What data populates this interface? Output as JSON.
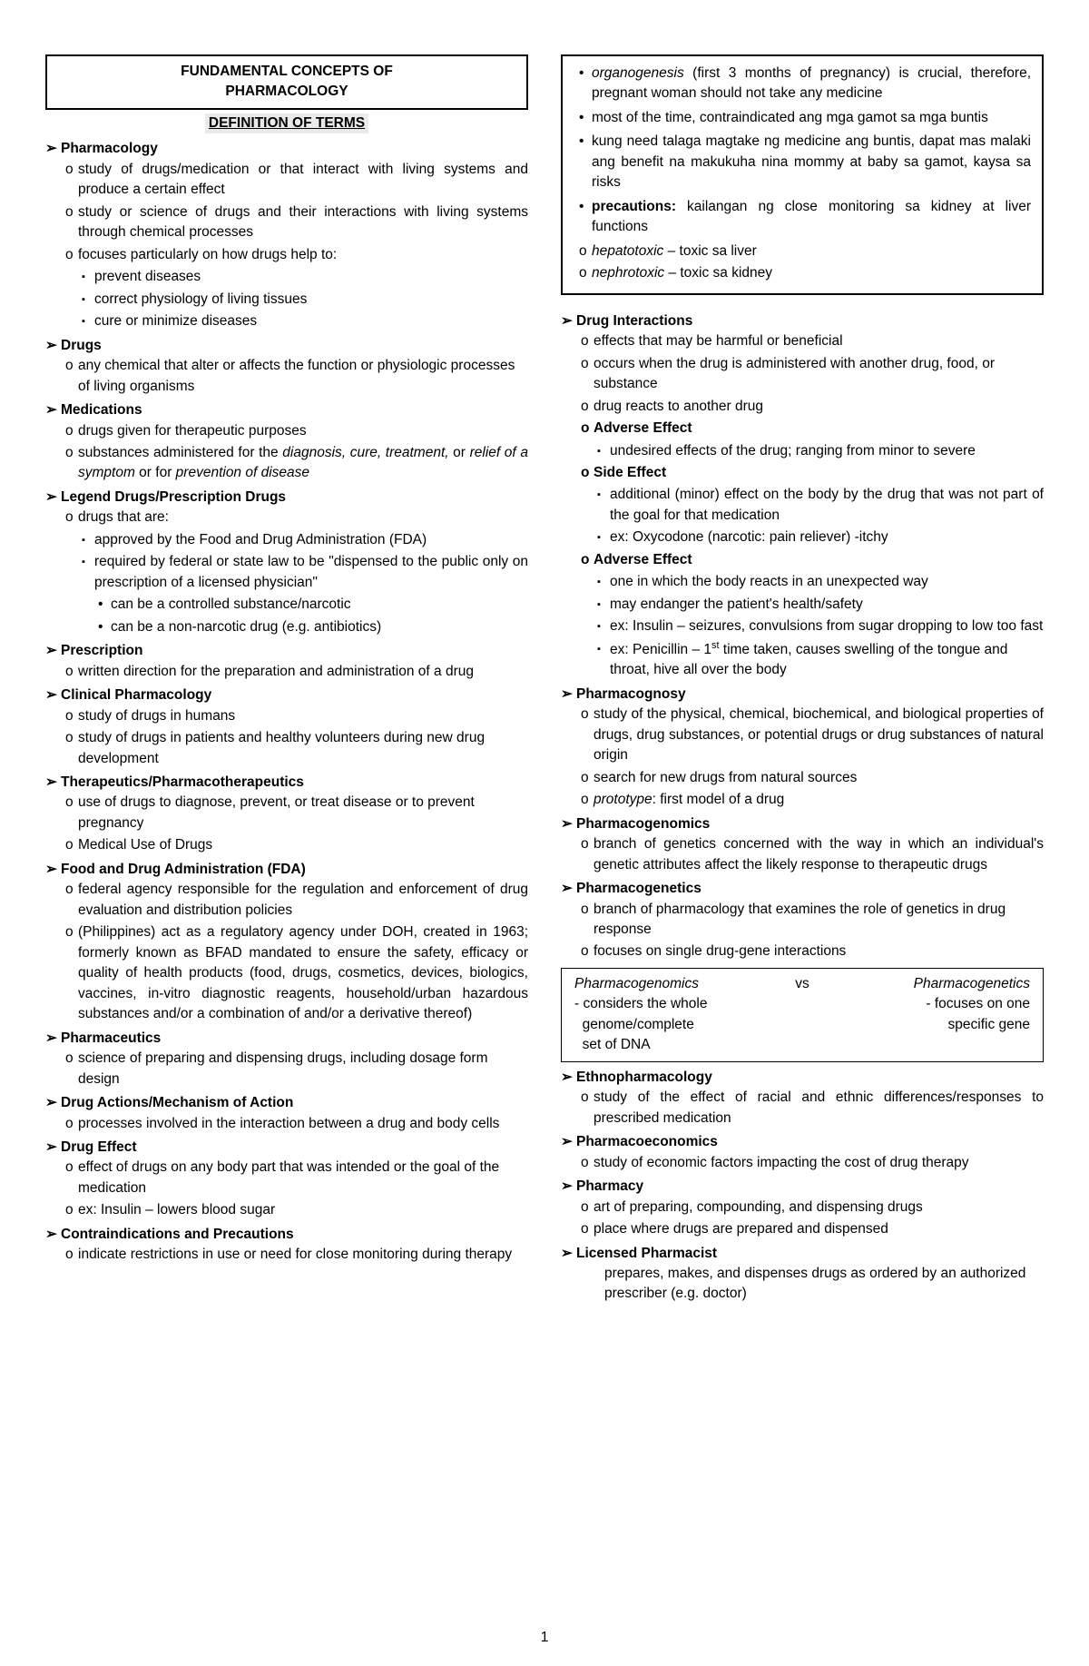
{
  "title": {
    "line1": "FUNDAMENTAL CONCEPTS OF",
    "line2": "PHARMACOLOGY"
  },
  "section_header": "DEFINITION OF TERMS",
  "page_number": "1",
  "left": {
    "pharmacology": {
      "label": "Pharmacology",
      "i1": "study of drugs/medication or that interact with living systems and produce a certain effect",
      "i2": "study or science of drugs and their interactions with living systems through chemical processes",
      "i3": "focuses particularly on how drugs help to:",
      "i3a": "prevent diseases",
      "i3b": "correct physiology of living tissues",
      "i3c": "cure or minimize diseases"
    },
    "drugs": {
      "label": "Drugs",
      "i1": "any chemical that alter or affects the function or physiologic processes of living organisms"
    },
    "medications": {
      "label": "Medications",
      "i1": "drugs given for therapeutic purposes",
      "i2_pre": "substances administered for the ",
      "i2_i1": "diagnosis, cure, treatment,",
      "i2_mid": " or ",
      "i2_i2": "relief of a symptom",
      "i2_mid2": " or for ",
      "i2_i3": "prevention of disease"
    },
    "legend": {
      "label": "Legend Drugs/Prescription Drugs",
      "i1": "drugs that are:",
      "i1a": "approved by the Food and Drug Administration (FDA)",
      "i1b": "required by federal or state law to be \"dispensed to the public only on prescription of a licensed physician\"",
      "i1b1": "can be a controlled substance/narcotic",
      "i1b2": "can be a non-narcotic drug (e.g. antibiotics)"
    },
    "prescription": {
      "label": "Prescription",
      "i1": "written direction for the preparation and administration of a drug"
    },
    "clinical": {
      "label": "Clinical Pharmacology",
      "i1": "study of drugs in humans",
      "i2": "study of drugs in patients and healthy volunteers during new drug development"
    },
    "therapeutics": {
      "label": "Therapeutics/Pharmacotherapeutics",
      "i1": "use of drugs to diagnose, prevent, or treat disease or to prevent pregnancy",
      "i2": "Medical Use of Drugs"
    },
    "fda": {
      "label": "Food and Drug Administration (FDA)",
      "i1": "federal agency responsible for the regulation and enforcement of drug evaluation and distribution policies",
      "i2": "(Philippines) act as a regulatory agency under DOH, created in 1963; formerly known as BFAD mandated to ensure the safety, efficacy or quality of health products (food, drugs, cosmetics, devices, biologics, vaccines, in-vitro diagnostic reagents, household/urban hazardous substances and/or a combination of and/or a derivative thereof)"
    },
    "pharmaceutics": {
      "label": "Pharmaceutics",
      "i1": "science of preparing and dispensing drugs, including dosage form design"
    },
    "mechanism": {
      "label": "Drug Actions/Mechanism of Action",
      "i1": "processes involved in the interaction between a drug and body cells"
    },
    "effect": {
      "label": "Drug Effect",
      "i1": "effect of drugs on any body part that was intended or the goal of the medication",
      "i2": "ex: Insulin – lowers blood sugar"
    },
    "contra": {
      "label": "Contraindications and Precautions",
      "i1": "indicate restrictions in use or need for close monitoring during therapy"
    }
  },
  "right": {
    "box": {
      "i1_i": "organogenesis",
      "i1_rest": " (first 3 months of pregnancy) is crucial, therefore, pregnant woman should not take any medicine",
      "i2": "most of the time, contraindicated ang mga gamot sa mga buntis",
      "i3": "kung need talaga magtake ng medicine ang buntis, dapat mas malaki ang benefit na makukuha nina mommy at baby sa gamot, kaysa sa risks",
      "i4_b": "precautions:",
      "i4_rest": " kailangan ng close monitoring sa kidney at liver functions",
      "i5_i": "hepatotoxic",
      "i5_rest": " – toxic sa liver",
      "i6_i": "nephrotoxic",
      "i6_rest": " – toxic sa kidney"
    },
    "interactions": {
      "label": "Drug Interactions",
      "i1": "effects that may be harmful or beneficial",
      "i2": "occurs when the drug is administered with another drug, food, or substance",
      "i3": "drug reacts to another drug",
      "adverse1": "Adverse Effect",
      "adverse1a": "undesired effects of the drug; ranging from minor to severe",
      "side": "Side Effect",
      "side_a": "additional (minor) effect on the body by the drug that was not part of the goal for that medication",
      "side_b": "ex: Oxycodone (narcotic: pain reliever) -itchy",
      "adverse2": "Adverse Effect",
      "adverse2a": "one in which the body reacts in an unexpected way",
      "adverse2b": "may endanger the patient's health/safety",
      "adverse2c": "ex: Insulin – seizures, convulsions from sugar dropping to low too fast",
      "adverse2d_pre": "ex: Penicillin – 1",
      "adverse2d_post": " time taken, causes swelling of the tongue and throat, hive all over the body"
    },
    "pharmacognosy": {
      "label": "Pharmacognosy",
      "i1": "study of the physical, chemical, biochemical, and biological properties of drugs, drug substances, or potential drugs or drug substances of natural origin",
      "i2": "search for new drugs from natural sources",
      "i3_i": "prototype",
      "i3_rest": ": first model of a drug"
    },
    "genomics": {
      "label": "Pharmacogenomics",
      "i1": "branch of genetics concerned with the way in which an individual's genetic attributes affect the likely response to therapeutic drugs"
    },
    "genetics": {
      "label": "Pharmacogenetics",
      "i1": "branch of pharmacology that examines the role of genetics in drug response",
      "i2": "focuses on single drug-gene interactions"
    },
    "compare": {
      "left_title": "Pharmacogenomics",
      "left_l1": "- considers the whole",
      "left_l2": "genome/complete",
      "left_l3": "set of DNA",
      "vs": "vs",
      "right_title": "Pharmacogenetics",
      "right_l1": "- focuses on one",
      "right_l2": "specific gene"
    },
    "ethno": {
      "label": "Ethnopharmacology",
      "i1": "study of the effect of racial and ethnic differences/responses to prescribed medication"
    },
    "economics": {
      "label": "Pharmacoeconomics",
      "i1": "study of economic factors impacting the cost of drug therapy"
    },
    "pharmacy": {
      "label": "Pharmacy",
      "i1": "art of preparing, compounding, and dispensing drugs",
      "i2": "place where drugs are prepared and dispensed"
    },
    "licensed": {
      "label": "Licensed Pharmacist",
      "i1": "prepares, makes, and dispenses drugs as ordered by an authorized prescriber (e.g. doctor)"
    }
  }
}
